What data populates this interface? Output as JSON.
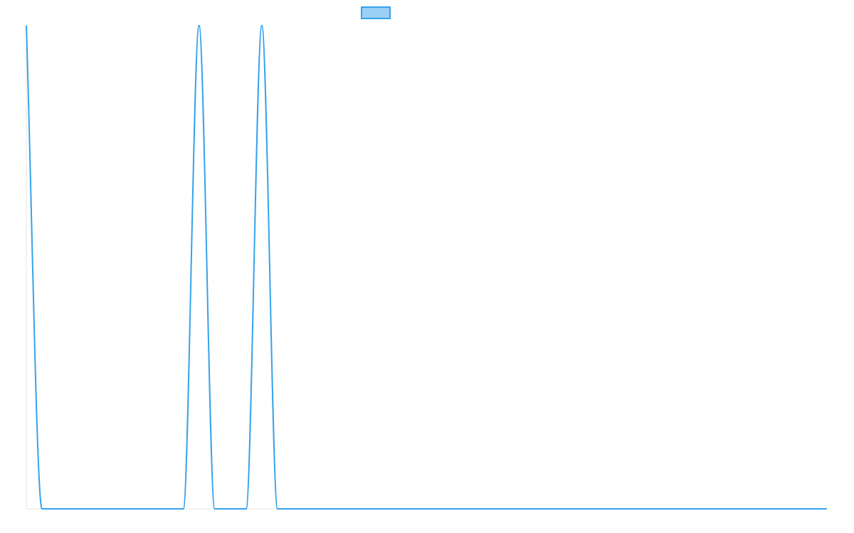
{
  "colors": {
    "series_line": "#36A2EB",
    "legend_fill": "#9AD0F5",
    "axis_line": "#E5E5E5",
    "background": "#FFFFFF"
  },
  "legend": {
    "position": "top-center",
    "label": ""
  },
  "chart_data": {
    "type": "line",
    "title": "",
    "xlabel": "",
    "ylabel": "",
    "grid": false,
    "xlim": [
      0,
      51
    ],
    "ylim": [
      0,
      1
    ],
    "series": [
      {
        "smooth": true,
        "points": [
          [
            0,
            1
          ],
          [
            1,
            0
          ],
          [
            2,
            0
          ],
          [
            3,
            0
          ],
          [
            4,
            0
          ],
          [
            5,
            0
          ],
          [
            6,
            0
          ],
          [
            7,
            0
          ],
          [
            8,
            0
          ],
          [
            9,
            0
          ],
          [
            10,
            0
          ],
          [
            11,
            1
          ],
          [
            12,
            0
          ],
          [
            13,
            0
          ],
          [
            14,
            0
          ],
          [
            15,
            1
          ],
          [
            16,
            0
          ],
          [
            17,
            0
          ],
          [
            18,
            0
          ],
          [
            19,
            0
          ],
          [
            20,
            0
          ],
          [
            21,
            0
          ],
          [
            22,
            0
          ],
          [
            23,
            0
          ],
          [
            24,
            0
          ],
          [
            25,
            0
          ],
          [
            26,
            0
          ],
          [
            27,
            0
          ],
          [
            28,
            0
          ],
          [
            29,
            0
          ],
          [
            30,
            0
          ],
          [
            31,
            0
          ],
          [
            32,
            0
          ],
          [
            33,
            0
          ],
          [
            34,
            0
          ],
          [
            35,
            0
          ],
          [
            36,
            0
          ],
          [
            37,
            0
          ],
          [
            38,
            0
          ],
          [
            39,
            0
          ],
          [
            40,
            0
          ],
          [
            41,
            0
          ],
          [
            42,
            0
          ],
          [
            43,
            0
          ],
          [
            44,
            0
          ],
          [
            45,
            0
          ],
          [
            46,
            0
          ],
          [
            47,
            0
          ],
          [
            48,
            0
          ],
          [
            49,
            0
          ],
          [
            50,
            0
          ],
          [
            51,
            0
          ]
        ]
      }
    ]
  }
}
